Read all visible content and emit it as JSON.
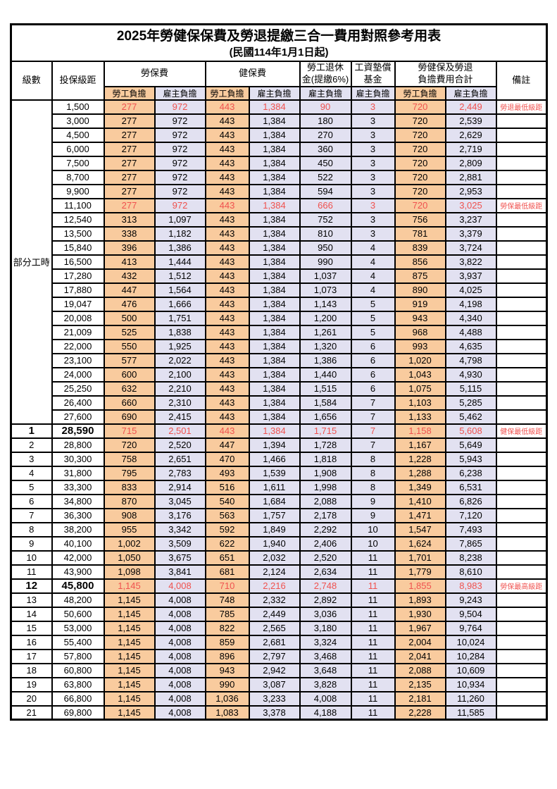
{
  "title": "2025年勞健保保費及勞退提繳三合一費用對照參考用表",
  "subtitle": "(民國114年1月1日起)",
  "columns": {
    "level": "級數",
    "bracket": "投保級距",
    "labor_insurance": "勞保費",
    "health_insurance": "健保費",
    "pension_line1": "勞工退休",
    "pension_line2": "金(提繳6%)",
    "wage_fund_line1": "工資墊償",
    "wage_fund_line2": "基金",
    "total_line1": "勞健保及勞退",
    "total_line2": "負擔費用合計",
    "remark": "備註",
    "employee_burden": "勞工負擔",
    "employer_burden": "雇主負擔"
  },
  "section": {
    "label": "部分工時",
    "row_count": 23
  },
  "colors": {
    "employee_bg": "#F9CB9E",
    "employer_bg": "#E2E1F1",
    "highlight_red": "#F0524F"
  },
  "rows": [
    {
      "level": "",
      "bracket": "1,500",
      "labor_emp": "277",
      "labor_er": "972",
      "health_emp": "443",
      "health_er": "1,384",
      "pension": "90",
      "fund": "3",
      "total_emp": "720",
      "total_er": "2,449",
      "remark": "勞退最低級距",
      "red": true,
      "bold": false
    },
    {
      "level": "",
      "bracket": "3,000",
      "labor_emp": "277",
      "labor_er": "972",
      "health_emp": "443",
      "health_er": "1,384",
      "pension": "180",
      "fund": "3",
      "total_emp": "720",
      "total_er": "2,539",
      "remark": "",
      "red": false,
      "bold": false
    },
    {
      "level": "",
      "bracket": "4,500",
      "labor_emp": "277",
      "labor_er": "972",
      "health_emp": "443",
      "health_er": "1,384",
      "pension": "270",
      "fund": "3",
      "total_emp": "720",
      "total_er": "2,629",
      "remark": "",
      "red": false,
      "bold": false
    },
    {
      "level": "",
      "bracket": "6,000",
      "labor_emp": "277",
      "labor_er": "972",
      "health_emp": "443",
      "health_er": "1,384",
      "pension": "360",
      "fund": "3",
      "total_emp": "720",
      "total_er": "2,719",
      "remark": "",
      "red": false,
      "bold": false
    },
    {
      "level": "",
      "bracket": "7,500",
      "labor_emp": "277",
      "labor_er": "972",
      "health_emp": "443",
      "health_er": "1,384",
      "pension": "450",
      "fund": "3",
      "total_emp": "720",
      "total_er": "2,809",
      "remark": "",
      "red": false,
      "bold": false
    },
    {
      "level": "",
      "bracket": "8,700",
      "labor_emp": "277",
      "labor_er": "972",
      "health_emp": "443",
      "health_er": "1,384",
      "pension": "522",
      "fund": "3",
      "total_emp": "720",
      "total_er": "2,881",
      "remark": "",
      "red": false,
      "bold": false
    },
    {
      "level": "",
      "bracket": "9,900",
      "labor_emp": "277",
      "labor_er": "972",
      "health_emp": "443",
      "health_er": "1,384",
      "pension": "594",
      "fund": "3",
      "total_emp": "720",
      "total_er": "2,953",
      "remark": "",
      "red": false,
      "bold": false
    },
    {
      "level": "",
      "bracket": "11,100",
      "labor_emp": "277",
      "labor_er": "972",
      "health_emp": "443",
      "health_er": "1,384",
      "pension": "666",
      "fund": "3",
      "total_emp": "720",
      "total_er": "3,025",
      "remark": "勞保最低級距",
      "red": true,
      "bold": false
    },
    {
      "level": "",
      "bracket": "12,540",
      "labor_emp": "313",
      "labor_er": "1,097",
      "health_emp": "443",
      "health_er": "1,384",
      "pension": "752",
      "fund": "3",
      "total_emp": "756",
      "total_er": "3,237",
      "remark": "",
      "red": false,
      "bold": false
    },
    {
      "level": "",
      "bracket": "13,500",
      "labor_emp": "338",
      "labor_er": "1,182",
      "health_emp": "443",
      "health_er": "1,384",
      "pension": "810",
      "fund": "3",
      "total_emp": "781",
      "total_er": "3,379",
      "remark": "",
      "red": false,
      "bold": false
    },
    {
      "level": "",
      "bracket": "15,840",
      "labor_emp": "396",
      "labor_er": "1,386",
      "health_emp": "443",
      "health_er": "1,384",
      "pension": "950",
      "fund": "4",
      "total_emp": "839",
      "total_er": "3,724",
      "remark": "",
      "red": false,
      "bold": false
    },
    {
      "level": "",
      "bracket": "16,500",
      "labor_emp": "413",
      "labor_er": "1,444",
      "health_emp": "443",
      "health_er": "1,384",
      "pension": "990",
      "fund": "4",
      "total_emp": "856",
      "total_er": "3,822",
      "remark": "",
      "red": false,
      "bold": false
    },
    {
      "level": "",
      "bracket": "17,280",
      "labor_emp": "432",
      "labor_er": "1,512",
      "health_emp": "443",
      "health_er": "1,384",
      "pension": "1,037",
      "fund": "4",
      "total_emp": "875",
      "total_er": "3,937",
      "remark": "",
      "red": false,
      "bold": false
    },
    {
      "level": "",
      "bracket": "17,880",
      "labor_emp": "447",
      "labor_er": "1,564",
      "health_emp": "443",
      "health_er": "1,384",
      "pension": "1,073",
      "fund": "4",
      "total_emp": "890",
      "total_er": "4,025",
      "remark": "",
      "red": false,
      "bold": false
    },
    {
      "level": "",
      "bracket": "19,047",
      "labor_emp": "476",
      "labor_er": "1,666",
      "health_emp": "443",
      "health_er": "1,384",
      "pension": "1,143",
      "fund": "5",
      "total_emp": "919",
      "total_er": "4,198",
      "remark": "",
      "red": false,
      "bold": false
    },
    {
      "level": "",
      "bracket": "20,008",
      "labor_emp": "500",
      "labor_er": "1,751",
      "health_emp": "443",
      "health_er": "1,384",
      "pension": "1,200",
      "fund": "5",
      "total_emp": "943",
      "total_er": "4,340",
      "remark": "",
      "red": false,
      "bold": false
    },
    {
      "level": "",
      "bracket": "21,009",
      "labor_emp": "525",
      "labor_er": "1,838",
      "health_emp": "443",
      "health_er": "1,384",
      "pension": "1,261",
      "fund": "5",
      "total_emp": "968",
      "total_er": "4,488",
      "remark": "",
      "red": false,
      "bold": false
    },
    {
      "level": "",
      "bracket": "22,000",
      "labor_emp": "550",
      "labor_er": "1,925",
      "health_emp": "443",
      "health_er": "1,384",
      "pension": "1,320",
      "fund": "6",
      "total_emp": "993",
      "total_er": "4,635",
      "remark": "",
      "red": false,
      "bold": false
    },
    {
      "level": "",
      "bracket": "23,100",
      "labor_emp": "577",
      "labor_er": "2,022",
      "health_emp": "443",
      "health_er": "1,384",
      "pension": "1,386",
      "fund": "6",
      "total_emp": "1,020",
      "total_er": "4,798",
      "remark": "",
      "red": false,
      "bold": false
    },
    {
      "level": "",
      "bracket": "24,000",
      "labor_emp": "600",
      "labor_er": "2,100",
      "health_emp": "443",
      "health_er": "1,384",
      "pension": "1,440",
      "fund": "6",
      "total_emp": "1,043",
      "total_er": "4,930",
      "remark": "",
      "red": false,
      "bold": false
    },
    {
      "level": "",
      "bracket": "25,250",
      "labor_emp": "632",
      "labor_er": "2,210",
      "health_emp": "443",
      "health_er": "1,384",
      "pension": "1,515",
      "fund": "6",
      "total_emp": "1,075",
      "total_er": "5,115",
      "remark": "",
      "red": false,
      "bold": false
    },
    {
      "level": "",
      "bracket": "26,400",
      "labor_emp": "660",
      "labor_er": "2,310",
      "health_emp": "443",
      "health_er": "1,384",
      "pension": "1,584",
      "fund": "7",
      "total_emp": "1,103",
      "total_er": "5,285",
      "remark": "",
      "red": false,
      "bold": false
    },
    {
      "level": "",
      "bracket": "27,600",
      "labor_emp": "690",
      "labor_er": "2,415",
      "health_emp": "443",
      "health_er": "1,384",
      "pension": "1,656",
      "fund": "7",
      "total_emp": "1,133",
      "total_er": "5,462",
      "remark": "",
      "red": false,
      "bold": false
    },
    {
      "level": "1",
      "bracket": "28,590",
      "labor_emp": "715",
      "labor_er": "2,501",
      "health_emp": "443",
      "health_er": "1,384",
      "pension": "1,715",
      "fund": "7",
      "total_emp": "1,158",
      "total_er": "5,608",
      "remark": "健保最低級距",
      "red": true,
      "bold": true
    },
    {
      "level": "2",
      "bracket": "28,800",
      "labor_emp": "720",
      "labor_er": "2,520",
      "health_emp": "447",
      "health_er": "1,394",
      "pension": "1,728",
      "fund": "7",
      "total_emp": "1,167",
      "total_er": "5,649",
      "remark": "",
      "red": false,
      "bold": false
    },
    {
      "level": "3",
      "bracket": "30,300",
      "labor_emp": "758",
      "labor_er": "2,651",
      "health_emp": "470",
      "health_er": "1,466",
      "pension": "1,818",
      "fund": "8",
      "total_emp": "1,228",
      "total_er": "5,943",
      "remark": "",
      "red": false,
      "bold": false
    },
    {
      "level": "4",
      "bracket": "31,800",
      "labor_emp": "795",
      "labor_er": "2,783",
      "health_emp": "493",
      "health_er": "1,539",
      "pension": "1,908",
      "fund": "8",
      "total_emp": "1,288",
      "total_er": "6,238",
      "remark": "",
      "red": false,
      "bold": false
    },
    {
      "level": "5",
      "bracket": "33,300",
      "labor_emp": "833",
      "labor_er": "2,914",
      "health_emp": "516",
      "health_er": "1,611",
      "pension": "1,998",
      "fund": "8",
      "total_emp": "1,349",
      "total_er": "6,531",
      "remark": "",
      "red": false,
      "bold": false
    },
    {
      "level": "6",
      "bracket": "34,800",
      "labor_emp": "870",
      "labor_er": "3,045",
      "health_emp": "540",
      "health_er": "1,684",
      "pension": "2,088",
      "fund": "9",
      "total_emp": "1,410",
      "total_er": "6,826",
      "remark": "",
      "red": false,
      "bold": false
    },
    {
      "level": "7",
      "bracket": "36,300",
      "labor_emp": "908",
      "labor_er": "3,176",
      "health_emp": "563",
      "health_er": "1,757",
      "pension": "2,178",
      "fund": "9",
      "total_emp": "1,471",
      "total_er": "7,120",
      "remark": "",
      "red": false,
      "bold": false
    },
    {
      "level": "8",
      "bracket": "38,200",
      "labor_emp": "955",
      "labor_er": "3,342",
      "health_emp": "592",
      "health_er": "1,849",
      "pension": "2,292",
      "fund": "10",
      "total_emp": "1,547",
      "total_er": "7,493",
      "remark": "",
      "red": false,
      "bold": false
    },
    {
      "level": "9",
      "bracket": "40,100",
      "labor_emp": "1,002",
      "labor_er": "3,509",
      "health_emp": "622",
      "health_er": "1,940",
      "pension": "2,406",
      "fund": "10",
      "total_emp": "1,624",
      "total_er": "7,865",
      "remark": "",
      "red": false,
      "bold": false
    },
    {
      "level": "10",
      "bracket": "42,000",
      "labor_emp": "1,050",
      "labor_er": "3,675",
      "health_emp": "651",
      "health_er": "2,032",
      "pension": "2,520",
      "fund": "11",
      "total_emp": "1,701",
      "total_er": "8,238",
      "remark": "",
      "red": false,
      "bold": false
    },
    {
      "level": "11",
      "bracket": "43,900",
      "labor_emp": "1,098",
      "labor_er": "3,841",
      "health_emp": "681",
      "health_er": "2,124",
      "pension": "2,634",
      "fund": "11",
      "total_emp": "1,779",
      "total_er": "8,610",
      "remark": "",
      "red": false,
      "bold": false
    },
    {
      "level": "12",
      "bracket": "45,800",
      "labor_emp": "1,145",
      "labor_er": "4,008",
      "health_emp": "710",
      "health_er": "2,216",
      "pension": "2,748",
      "fund": "11",
      "total_emp": "1,855",
      "total_er": "8,983",
      "remark": "勞保最高級距",
      "red": true,
      "bold": true
    },
    {
      "level": "13",
      "bracket": "48,200",
      "labor_emp": "1,145",
      "labor_er": "4,008",
      "health_emp": "748",
      "health_er": "2,332",
      "pension": "2,892",
      "fund": "11",
      "total_emp": "1,893",
      "total_er": "9,243",
      "remark": "",
      "red": false,
      "bold": false
    },
    {
      "level": "14",
      "bracket": "50,600",
      "labor_emp": "1,145",
      "labor_er": "4,008",
      "health_emp": "785",
      "health_er": "2,449",
      "pension": "3,036",
      "fund": "11",
      "total_emp": "1,930",
      "total_er": "9,504",
      "remark": "",
      "red": false,
      "bold": false
    },
    {
      "level": "15",
      "bracket": "53,000",
      "labor_emp": "1,145",
      "labor_er": "4,008",
      "health_emp": "822",
      "health_er": "2,565",
      "pension": "3,180",
      "fund": "11",
      "total_emp": "1,967",
      "total_er": "9,764",
      "remark": "",
      "red": false,
      "bold": false
    },
    {
      "level": "16",
      "bracket": "55,400",
      "labor_emp": "1,145",
      "labor_er": "4,008",
      "health_emp": "859",
      "health_er": "2,681",
      "pension": "3,324",
      "fund": "11",
      "total_emp": "2,004",
      "total_er": "10,024",
      "remark": "",
      "red": false,
      "bold": false
    },
    {
      "level": "17",
      "bracket": "57,800",
      "labor_emp": "1,145",
      "labor_er": "4,008",
      "health_emp": "896",
      "health_er": "2,797",
      "pension": "3,468",
      "fund": "11",
      "total_emp": "2,041",
      "total_er": "10,284",
      "remark": "",
      "red": false,
      "bold": false
    },
    {
      "level": "18",
      "bracket": "60,800",
      "labor_emp": "1,145",
      "labor_er": "4,008",
      "health_emp": "943",
      "health_er": "2,942",
      "pension": "3,648",
      "fund": "11",
      "total_emp": "2,088",
      "total_er": "10,609",
      "remark": "",
      "red": false,
      "bold": false
    },
    {
      "level": "19",
      "bracket": "63,800",
      "labor_emp": "1,145",
      "labor_er": "4,008",
      "health_emp": "990",
      "health_er": "3,087",
      "pension": "3,828",
      "fund": "11",
      "total_emp": "2,135",
      "total_er": "10,934",
      "remark": "",
      "red": false,
      "bold": false
    },
    {
      "level": "20",
      "bracket": "66,800",
      "labor_emp": "1,145",
      "labor_er": "4,008",
      "health_emp": "1,036",
      "health_er": "3,233",
      "pension": "4,008",
      "fund": "11",
      "total_emp": "2,181",
      "total_er": "11,260",
      "remark": "",
      "red": false,
      "bold": false
    },
    {
      "level": "21",
      "bracket": "69,800",
      "labor_emp": "1,145",
      "labor_er": "4,008",
      "health_emp": "1,083",
      "health_er": "3,378",
      "pension": "4,188",
      "fund": "11",
      "total_emp": "2,228",
      "total_er": "11,585",
      "remark": "",
      "red": false,
      "bold": false
    }
  ]
}
